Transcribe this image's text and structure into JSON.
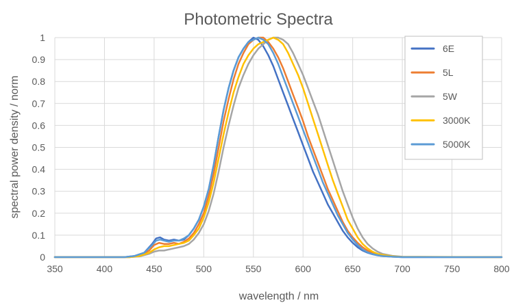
{
  "chart_data": {
    "type": "line",
    "title": "Photometric Spectra",
    "xlabel": "wavelength / nm",
    "ylabel": "spectral power density / norm",
    "xlim": [
      350,
      800
    ],
    "ylim": [
      0,
      1
    ],
    "xticks": [
      "350",
      "400",
      "450",
      "500",
      "550",
      "600",
      "650",
      "700",
      "750",
      "800"
    ],
    "yticks": [
      "0",
      "0.1",
      "0.2",
      "0.3",
      "0.4",
      "0.5",
      "0.6",
      "0.7",
      "0.8",
      "0.9",
      "1"
    ],
    "grid": true,
    "legend_position": "top-right",
    "series": [
      {
        "name": "6E",
        "color": "#4472C4",
        "x": [
          350,
          420,
          430,
          440,
          448,
          452,
          456,
          460,
          465,
          470,
          475,
          480,
          485,
          490,
          495,
          500,
          505,
          510,
          515,
          520,
          525,
          530,
          535,
          540,
          545,
          550,
          555,
          560,
          565,
          570,
          575,
          580,
          585,
          590,
          595,
          600,
          605,
          610,
          615,
          620,
          625,
          630,
          635,
          640,
          645,
          650,
          655,
          660,
          665,
          670,
          675,
          680,
          690,
          700,
          800
        ],
        "y": [
          0,
          0,
          0.005,
          0.02,
          0.06,
          0.085,
          0.09,
          0.08,
          0.075,
          0.08,
          0.075,
          0.08,
          0.1,
          0.13,
          0.17,
          0.23,
          0.31,
          0.42,
          0.55,
          0.67,
          0.77,
          0.85,
          0.91,
          0.95,
          0.98,
          1.0,
          0.99,
          0.96,
          0.92,
          0.87,
          0.81,
          0.75,
          0.69,
          0.63,
          0.57,
          0.51,
          0.45,
          0.39,
          0.34,
          0.29,
          0.24,
          0.2,
          0.16,
          0.12,
          0.09,
          0.065,
          0.045,
          0.03,
          0.02,
          0.013,
          0.008,
          0.005,
          0.002,
          0,
          0
        ]
      },
      {
        "name": "5L",
        "color": "#ED7D31",
        "x": [
          350,
          425,
          435,
          445,
          450,
          455,
          460,
          465,
          470,
          475,
          480,
          485,
          490,
          495,
          500,
          505,
          510,
          515,
          520,
          525,
          530,
          535,
          540,
          545,
          550,
          555,
          560,
          565,
          570,
          575,
          580,
          585,
          590,
          595,
          600,
          605,
          610,
          615,
          620,
          625,
          630,
          635,
          640,
          645,
          650,
          655,
          660,
          665,
          670,
          675,
          680,
          690,
          700,
          800
        ],
        "y": [
          0,
          0,
          0.005,
          0.03,
          0.055,
          0.065,
          0.06,
          0.06,
          0.065,
          0.06,
          0.07,
          0.085,
          0.11,
          0.15,
          0.2,
          0.28,
          0.38,
          0.5,
          0.62,
          0.72,
          0.81,
          0.88,
          0.93,
          0.97,
          0.99,
          1.0,
          1.0,
          0.98,
          0.95,
          0.91,
          0.86,
          0.8,
          0.74,
          0.68,
          0.62,
          0.55,
          0.49,
          0.43,
          0.37,
          0.31,
          0.26,
          0.21,
          0.16,
          0.12,
          0.09,
          0.065,
          0.045,
          0.03,
          0.02,
          0.013,
          0.008,
          0.003,
          0.001,
          0
        ]
      },
      {
        "name": "5W",
        "color": "#A5A5A5",
        "x": [
          350,
          425,
          435,
          445,
          450,
          455,
          460,
          465,
          470,
          475,
          480,
          485,
          490,
          495,
          500,
          505,
          510,
          515,
          520,
          525,
          530,
          535,
          540,
          545,
          550,
          555,
          560,
          565,
          570,
          575,
          580,
          585,
          590,
          595,
          600,
          605,
          610,
          615,
          620,
          625,
          630,
          635,
          640,
          645,
          650,
          655,
          660,
          665,
          670,
          675,
          680,
          690,
          700,
          800
        ],
        "y": [
          0,
          0,
          0.003,
          0.015,
          0.025,
          0.03,
          0.03,
          0.035,
          0.04,
          0.045,
          0.05,
          0.06,
          0.08,
          0.11,
          0.15,
          0.21,
          0.29,
          0.39,
          0.5,
          0.6,
          0.69,
          0.77,
          0.83,
          0.88,
          0.92,
          0.95,
          0.97,
          0.99,
          1.0,
          1.0,
          0.99,
          0.97,
          0.93,
          0.88,
          0.83,
          0.77,
          0.71,
          0.65,
          0.58,
          0.51,
          0.44,
          0.37,
          0.3,
          0.24,
          0.18,
          0.13,
          0.09,
          0.06,
          0.04,
          0.025,
          0.015,
          0.006,
          0.002,
          0
        ]
      },
      {
        "name": "3000K",
        "color": "#FFC000",
        "x": [
          350,
          425,
          435,
          445,
          450,
          455,
          460,
          465,
          470,
          475,
          480,
          485,
          490,
          495,
          500,
          505,
          510,
          515,
          520,
          525,
          530,
          535,
          540,
          545,
          550,
          555,
          560,
          565,
          570,
          575,
          580,
          585,
          590,
          595,
          600,
          605,
          610,
          615,
          620,
          625,
          630,
          635,
          640,
          645,
          650,
          655,
          660,
          665,
          670,
          675,
          680,
          690,
          700,
          800
        ],
        "y": [
          0,
          0,
          0.005,
          0.02,
          0.035,
          0.045,
          0.05,
          0.05,
          0.055,
          0.06,
          0.065,
          0.075,
          0.1,
          0.13,
          0.18,
          0.25,
          0.34,
          0.45,
          0.56,
          0.66,
          0.75,
          0.82,
          0.88,
          0.92,
          0.95,
          0.97,
          0.98,
          0.99,
          1.0,
          0.99,
          0.97,
          0.93,
          0.88,
          0.83,
          0.77,
          0.7,
          0.63,
          0.56,
          0.49,
          0.42,
          0.35,
          0.29,
          0.23,
          0.17,
          0.13,
          0.09,
          0.06,
          0.04,
          0.025,
          0.015,
          0.01,
          0.004,
          0.001,
          0
        ]
      },
      {
        "name": "5000K",
        "color": "#5B9BD5",
        "x": [
          350,
          420,
          430,
          440,
          448,
          452,
          456,
          460,
          465,
          470,
          475,
          480,
          485,
          490,
          495,
          500,
          505,
          510,
          515,
          520,
          525,
          530,
          535,
          540,
          545,
          550,
          555,
          560,
          565,
          570,
          575,
          580,
          585,
          590,
          595,
          600,
          605,
          610,
          615,
          620,
          625,
          630,
          635,
          640,
          645,
          650,
          655,
          660,
          665,
          670,
          675,
          680,
          690,
          700,
          800
        ],
        "y": [
          0,
          0,
          0.005,
          0.02,
          0.055,
          0.075,
          0.08,
          0.075,
          0.07,
          0.075,
          0.075,
          0.085,
          0.1,
          0.13,
          0.17,
          0.23,
          0.31,
          0.42,
          0.55,
          0.67,
          0.77,
          0.85,
          0.91,
          0.95,
          0.98,
          0.99,
          1.0,
          0.99,
          0.97,
          0.93,
          0.88,
          0.82,
          0.76,
          0.7,
          0.64,
          0.58,
          0.52,
          0.46,
          0.4,
          0.34,
          0.29,
          0.24,
          0.19,
          0.15,
          0.11,
          0.08,
          0.055,
          0.035,
          0.022,
          0.014,
          0.009,
          0.005,
          0.002,
          0,
          0
        ]
      }
    ]
  }
}
